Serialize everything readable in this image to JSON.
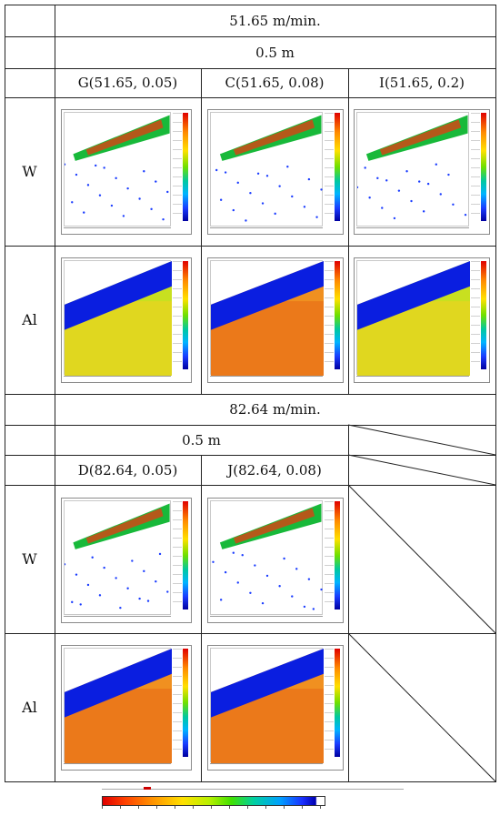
{
  "table": {
    "speed_1": "51.65 m/min.",
    "depth_1": "0.5 m",
    "samples_1": [
      "G(51.65, 0.05)",
      "C(51.65, 0.08)",
      "I(51.65, 0.2)"
    ],
    "speed_2": "82.64 m/min.",
    "depth_2": "0.5 m",
    "samples_2": [
      "D(82.64, 0.05)",
      "J(82.64, 0.08)"
    ],
    "element_w": "W",
    "element_al": "Al"
  },
  "maps": [
    {
      "sample": "G",
      "element": "W",
      "style": "band"
    },
    {
      "sample": "C",
      "element": "W",
      "style": "band"
    },
    {
      "sample": "I",
      "element": "W",
      "style": "band"
    },
    {
      "sample": "G",
      "element": "Al",
      "style": "field"
    },
    {
      "sample": "C",
      "element": "Al",
      "style": "field"
    },
    {
      "sample": "I",
      "element": "Al",
      "style": "field"
    },
    {
      "sample": "D",
      "element": "W",
      "style": "band"
    },
    {
      "sample": "J",
      "element": "W",
      "style": "band"
    },
    {
      "sample": "D",
      "element": "Al",
      "style": "field"
    },
    {
      "sample": "J",
      "element": "Al",
      "style": "field"
    }
  ],
  "colors": {
    "high": "#e00000",
    "mid": "#ffe000",
    "low": "#0000c0"
  }
}
